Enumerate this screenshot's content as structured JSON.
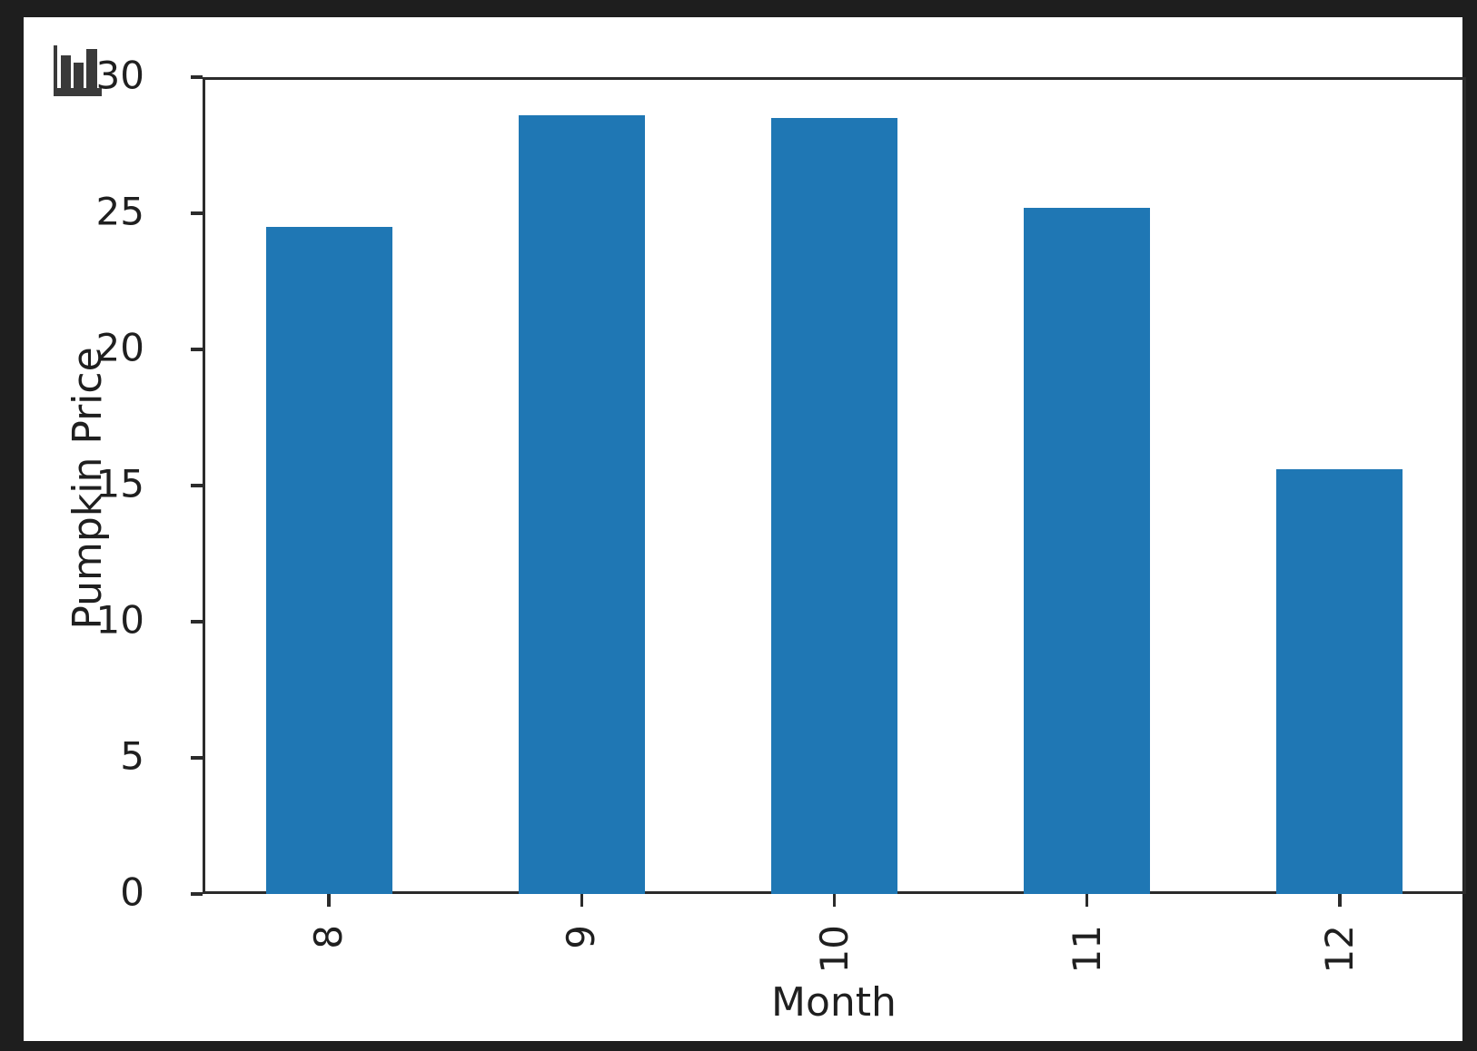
{
  "window": {
    "background_color": "#1e1e1e",
    "panel_background_color": "#ffffff"
  },
  "icons": {
    "corner_icon": "bar-chart-icon",
    "corner_icon_color": "#3a3a3a"
  },
  "chart_data": {
    "type": "bar",
    "title": "",
    "xlabel": "Month",
    "ylabel": "Pumpkin Price",
    "categories": [
      "8",
      "9",
      "10",
      "11",
      "12"
    ],
    "values": [
      24.5,
      28.6,
      28.5,
      25.2,
      15.6
    ],
    "ylim": [
      0,
      30
    ],
    "yticks": [
      0,
      5,
      10,
      15,
      20,
      25,
      30
    ],
    "x_tick_rotation": 90,
    "grid": false,
    "legend": null,
    "bar_color": "#1f77b4",
    "axis_color": "#2b2b2b",
    "text_color": "#1f1f1f",
    "bar_width_fraction": 0.5
  }
}
